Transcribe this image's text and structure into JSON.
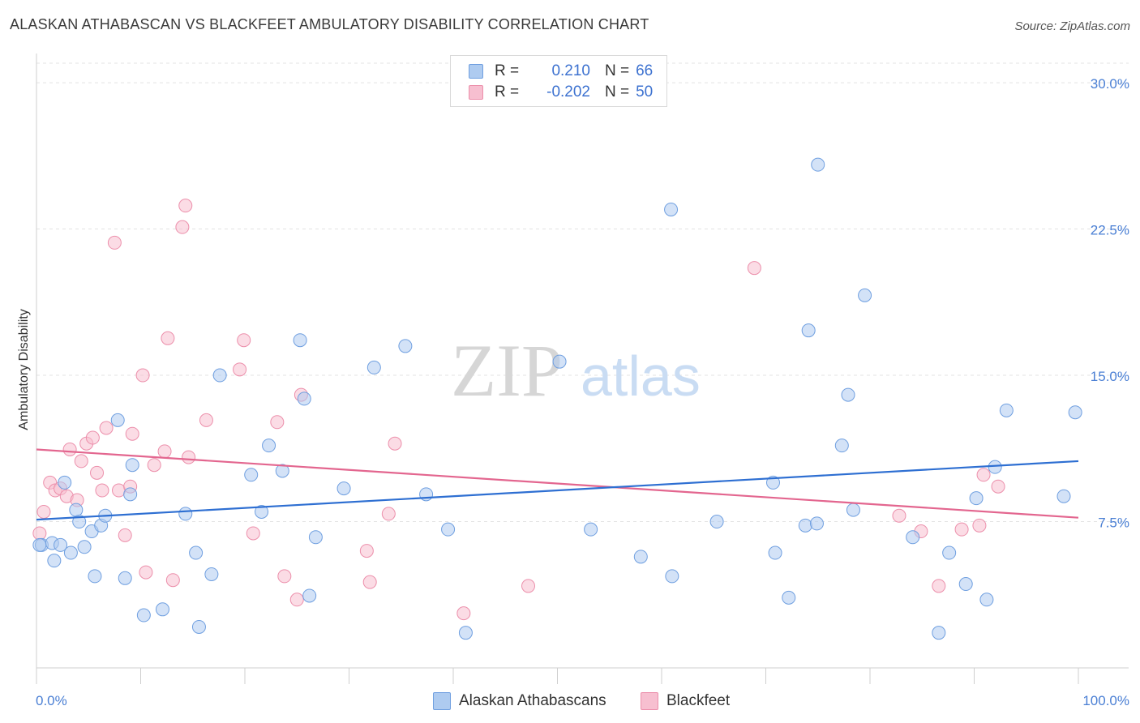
{
  "header": {
    "title": "ALASKAN ATHABASCAN VS BLACKFEET AMBULATORY DISABILITY CORRELATION CHART",
    "source": "Source: ZipAtlas.com"
  },
  "watermark": {
    "zip": "ZIP",
    "atlas": "atlas"
  },
  "legend": {
    "rows": [
      {
        "r_label": "R =",
        "r_value": "0.210",
        "n_label": "N =",
        "n_value": "66"
      },
      {
        "r_label": "R =",
        "r_value": "-0.202",
        "n_label": "N =",
        "n_value": "50"
      }
    ]
  },
  "bottom_legend": [
    "Alaskan Athabascans",
    "Blackfeet"
  ],
  "colors": {
    "blue_fill": "#aecbf0",
    "blue_stroke": "#6f9fe0",
    "blue_line": "#2e6fd2",
    "pink_fill": "#f7bfd0",
    "pink_stroke": "#ec8fab",
    "pink_line": "#e3668f",
    "grid": "#e3e3e3",
    "axis_text": "#4a7fd4"
  },
  "chart_data": {
    "type": "scatter",
    "title": "ALASKAN ATHABASCAN VS BLACKFEET AMBULATORY DISABILITY CORRELATION CHART",
    "xlabel": "",
    "ylabel": "Ambulatory Disability",
    "xlim": [
      0,
      100
    ],
    "ylim": [
      0,
      31
    ],
    "x_ticks": [
      "0.0%",
      "100.0%"
    ],
    "y_ticks": [
      {
        "value": 7.5,
        "label": "7.5%"
      },
      {
        "value": 15,
        "label": "15.0%"
      },
      {
        "value": 22.5,
        "label": "22.5%"
      },
      {
        "value": 30,
        "label": "30.0%"
      }
    ],
    "grid": true,
    "legend_position": "top-center",
    "series": [
      {
        "name": "Alaskan Athabascans",
        "r": 0.21,
        "n": 66,
        "trend": [
          [
            0,
            7.6
          ],
          [
            100,
            10.6
          ]
        ],
        "points": [
          [
            0.5,
            6.3
          ],
          [
            1.5,
            6.4
          ],
          [
            1.7,
            5.5
          ],
          [
            2.3,
            6.3
          ],
          [
            2.7,
            9.5
          ],
          [
            3.3,
            5.9
          ],
          [
            3.8,
            8.1
          ],
          [
            4.1,
            7.5
          ],
          [
            4.6,
            6.2
          ],
          [
            5.3,
            7.0
          ],
          [
            5.6,
            4.7
          ],
          [
            6.2,
            7.3
          ],
          [
            6.6,
            7.8
          ],
          [
            7.8,
            12.7
          ],
          [
            8.5,
            4.6
          ],
          [
            9.0,
            8.9
          ],
          [
            9.2,
            10.4
          ],
          [
            10.3,
            2.7
          ],
          [
            12.1,
            3.0
          ],
          [
            14.3,
            7.9
          ],
          [
            15.3,
            5.9
          ],
          [
            15.6,
            2.1
          ],
          [
            16.8,
            4.8
          ],
          [
            17.6,
            15.0
          ],
          [
            20.6,
            9.9
          ],
          [
            21.6,
            8.0
          ],
          [
            22.3,
            11.4
          ],
          [
            23.6,
            10.1
          ],
          [
            25.3,
            16.8
          ],
          [
            25.7,
            13.8
          ],
          [
            26.2,
            3.7
          ],
          [
            26.8,
            6.7
          ],
          [
            29.5,
            9.2
          ],
          [
            32.4,
            15.4
          ],
          [
            35.4,
            16.5
          ],
          [
            37.4,
            8.9
          ],
          [
            39.5,
            7.1
          ],
          [
            41.2,
            1.8
          ],
          [
            50.2,
            15.7
          ],
          [
            53.2,
            7.1
          ],
          [
            58.0,
            5.7
          ],
          [
            60.9,
            23.5
          ],
          [
            61.0,
            4.7
          ],
          [
            65.3,
            7.5
          ],
          [
            70.7,
            9.5
          ],
          [
            70.9,
            5.9
          ],
          [
            72.2,
            3.6
          ],
          [
            73.8,
            7.3
          ],
          [
            74.9,
            7.4
          ],
          [
            74.1,
            17.3
          ],
          [
            75.0,
            25.8
          ],
          [
            77.3,
            11.4
          ],
          [
            77.9,
            14.0
          ],
          [
            78.4,
            8.1
          ],
          [
            79.5,
            19.1
          ],
          [
            84.1,
            6.7
          ],
          [
            86.6,
            1.8
          ],
          [
            87.6,
            5.9
          ],
          [
            89.2,
            4.3
          ],
          [
            90.2,
            8.7
          ],
          [
            91.2,
            3.5
          ],
          [
            92.0,
            10.3
          ],
          [
            93.1,
            13.2
          ],
          [
            98.6,
            8.8
          ],
          [
            99.7,
            13.1
          ],
          [
            0.3,
            6.3
          ]
        ]
      },
      {
        "name": "Blackfeet",
        "r": -0.202,
        "n": 50,
        "trend": [
          [
            0,
            11.2
          ],
          [
            100,
            7.7
          ]
        ],
        "points": [
          [
            0.3,
            6.9
          ],
          [
            0.7,
            8.0
          ],
          [
            1.3,
            9.5
          ],
          [
            1.8,
            9.1
          ],
          [
            2.3,
            9.2
          ],
          [
            2.9,
            8.8
          ],
          [
            3.2,
            11.2
          ],
          [
            3.9,
            8.6
          ],
          [
            4.3,
            10.6
          ],
          [
            4.8,
            11.5
          ],
          [
            5.4,
            11.8
          ],
          [
            5.8,
            10.0
          ],
          [
            6.3,
            9.1
          ],
          [
            6.7,
            12.3
          ],
          [
            7.5,
            21.8
          ],
          [
            7.9,
            9.1
          ],
          [
            8.5,
            6.8
          ],
          [
            9.0,
            9.3
          ],
          [
            9.2,
            12.0
          ],
          [
            10.2,
            15.0
          ],
          [
            10.5,
            4.9
          ],
          [
            11.3,
            10.4
          ],
          [
            12.3,
            11.1
          ],
          [
            12.6,
            16.9
          ],
          [
            13.1,
            4.5
          ],
          [
            14.0,
            22.6
          ],
          [
            14.3,
            23.7
          ],
          [
            14.6,
            10.8
          ],
          [
            16.3,
            12.7
          ],
          [
            19.5,
            15.3
          ],
          [
            19.9,
            16.8
          ],
          [
            20.8,
            6.9
          ],
          [
            23.1,
            12.6
          ],
          [
            23.8,
            4.7
          ],
          [
            25.0,
            3.5
          ],
          [
            25.4,
            14.0
          ],
          [
            31.7,
            6.0
          ],
          [
            32.0,
            4.4
          ],
          [
            33.8,
            7.9
          ],
          [
            34.4,
            11.5
          ],
          [
            41.0,
            2.8
          ],
          [
            47.2,
            4.2
          ],
          [
            68.9,
            20.5
          ],
          [
            82.8,
            7.8
          ],
          [
            84.9,
            7.0
          ],
          [
            86.6,
            4.2
          ],
          [
            88.8,
            7.1
          ],
          [
            90.5,
            7.3
          ],
          [
            90.9,
            9.9
          ],
          [
            92.3,
            9.3
          ]
        ]
      }
    ]
  }
}
